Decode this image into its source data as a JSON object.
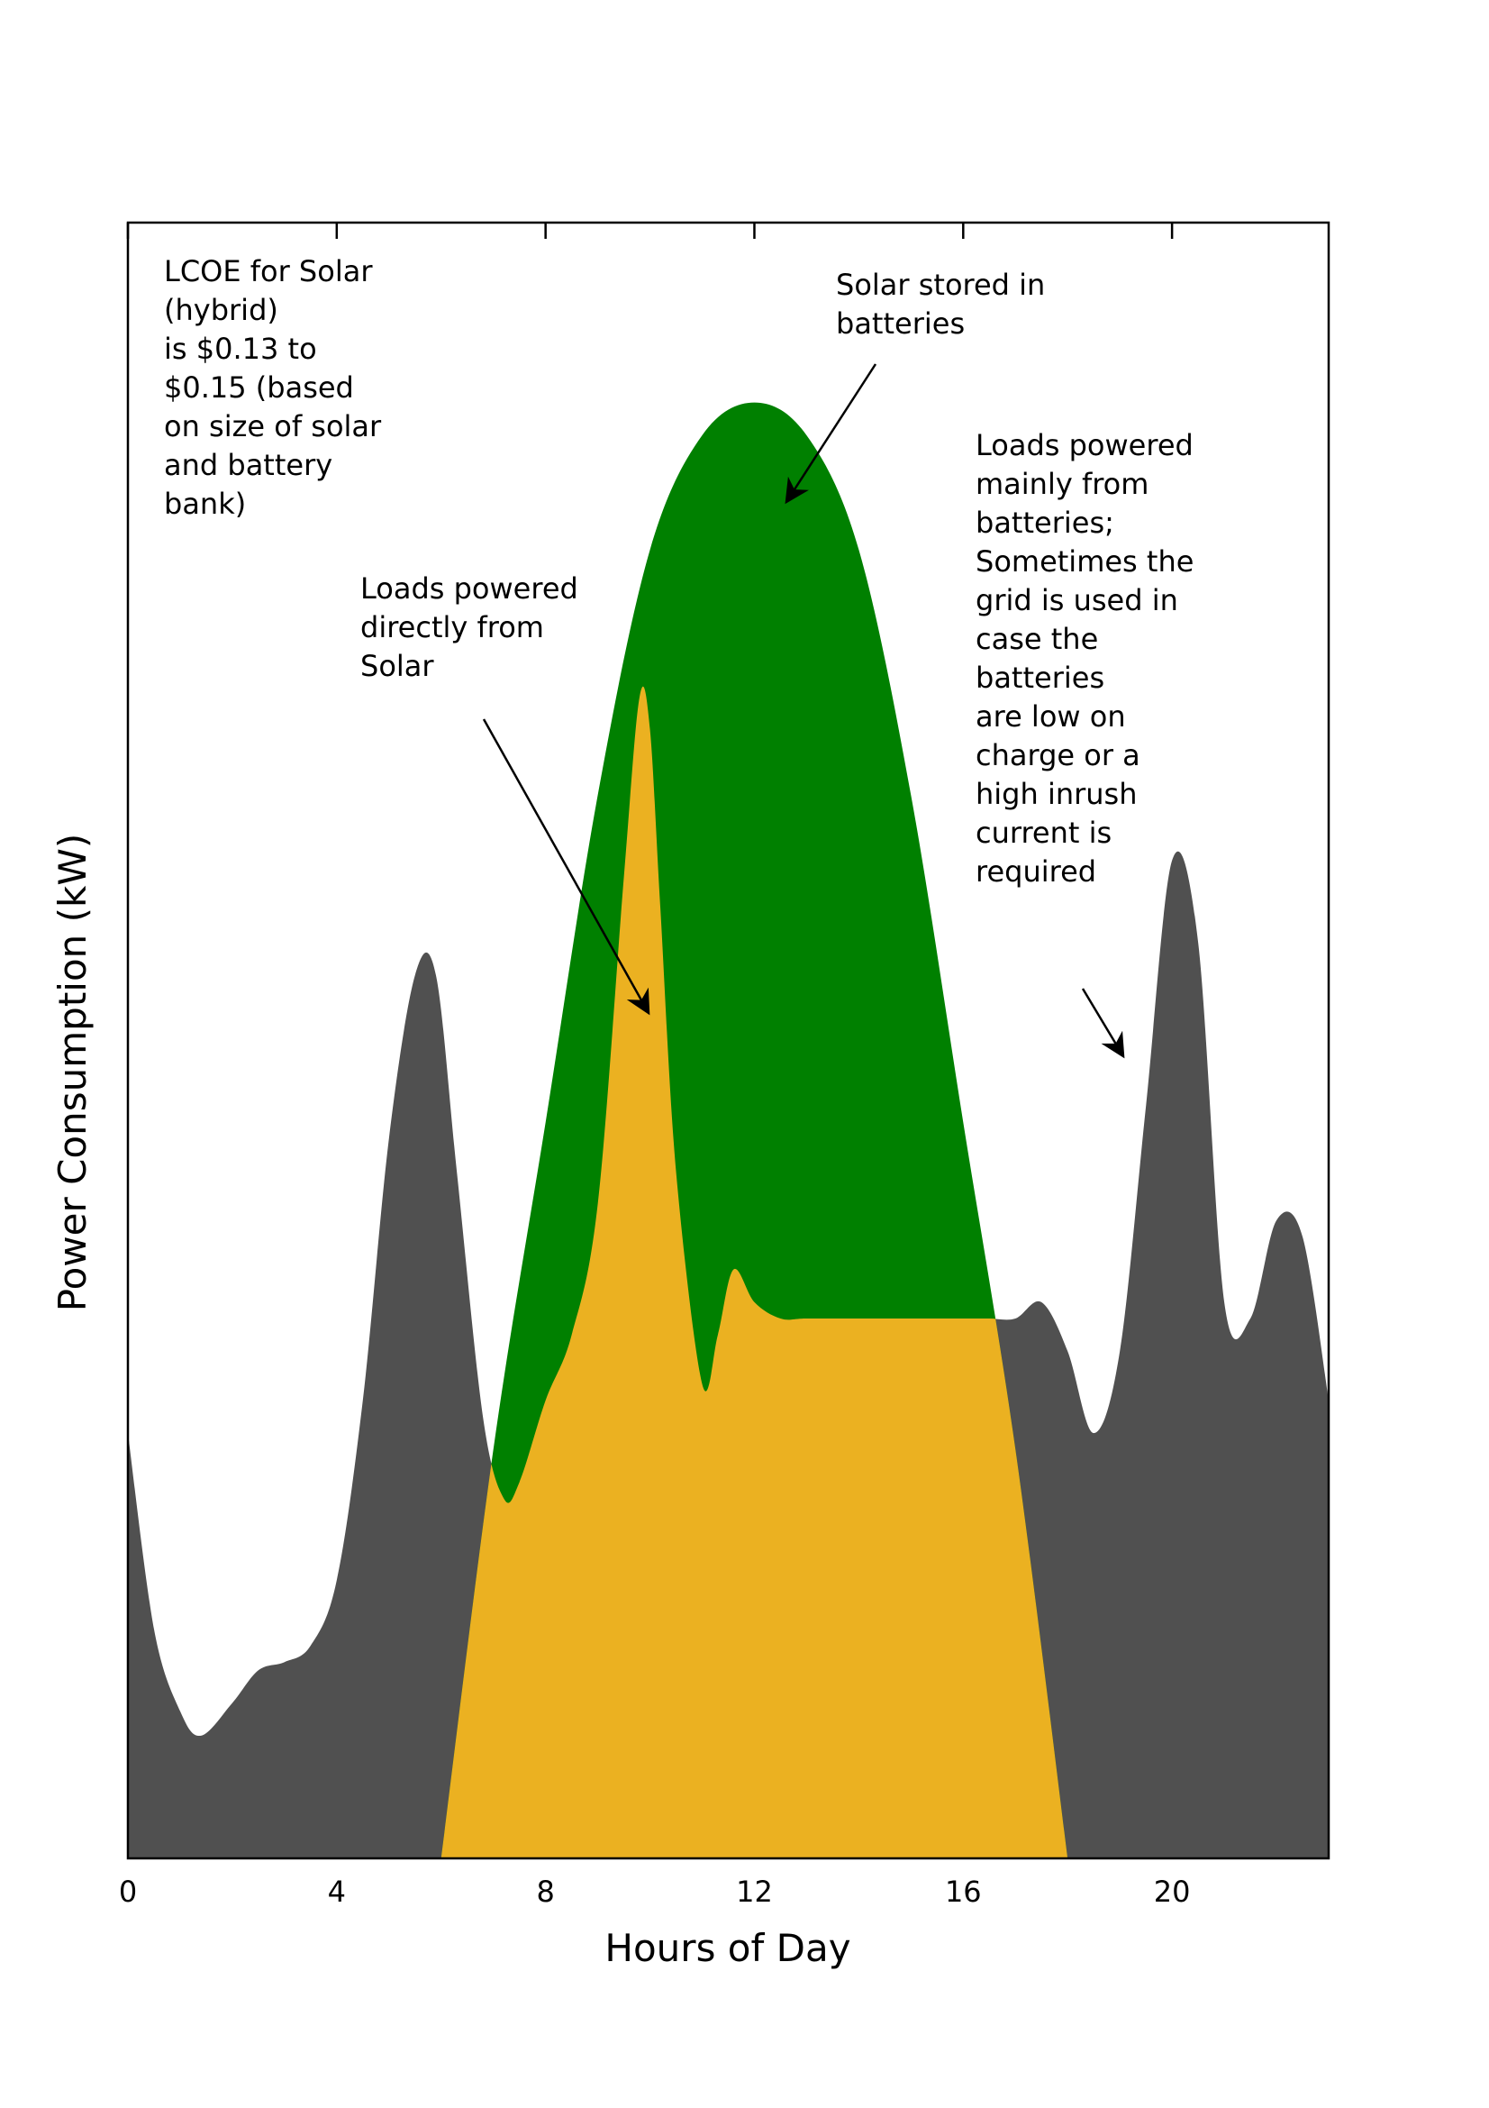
{
  "chart_data": {
    "type": "area",
    "xlabel": "Hours of Day",
    "ylabel": "Power Consumption (kW)",
    "xlim": [
      0,
      23
    ],
    "ylim": [
      0,
      100
    ],
    "x_ticks": [
      0,
      4,
      8,
      12,
      16,
      20
    ],
    "y_ticks": [],
    "grid": false,
    "colors": {
      "load": "#505050",
      "solar_stored": "#008000",
      "solar_direct": "#EBB121"
    },
    "series": [
      {
        "key": "load",
        "x": [
          0,
          0.5,
          1,
          1.4,
          2,
          2.5,
          3,
          3.5,
          4,
          4.5,
          5,
          5.5,
          5.9,
          6.3,
          6.8,
          7.2,
          7.5,
          8,
          8.5,
          9,
          9.5,
          9.8,
          10,
          10.2,
          10.5,
          11,
          11.3,
          11.6,
          12,
          12.5,
          13,
          14,
          15,
          16,
          16.5,
          17,
          17.5,
          18,
          18.5,
          19,
          19.5,
          20,
          20.5,
          21,
          21.5,
          22,
          22.5,
          23
        ],
        "y": [
          26,
          14,
          9,
          7.5,
          9.5,
          11.5,
          12,
          13,
          17,
          28,
          44,
          54,
          54,
          42,
          27,
          22,
          23,
          28,
          32,
          40,
          60,
          71,
          69,
          58,
          42,
          29,
          32,
          36,
          34,
          33,
          33,
          33,
          33,
          33,
          33,
          33,
          34,
          31,
          26,
          31,
          46,
          61,
          56,
          34,
          33,
          39,
          38,
          28
        ]
      },
      {
        "key": "solar_stored",
        "x": [
          6,
          7,
          8,
          9,
          10,
          11,
          12,
          13,
          14,
          15,
          16,
          17,
          18
        ],
        "y": [
          0,
          25,
          45,
          65,
          80,
          87,
          89,
          87,
          80,
          65,
          45,
          25,
          0
        ]
      }
    ],
    "annotations": [
      "LCOE for Solar (hybrid) is $0.13 to $0.15 (based on size of solar and battery bank)",
      "Solar stored in batteries",
      "Loads powered directly from Solar",
      "Loads powered mainly from batteries; Sometimes the grid is used in case the batteries are low on charge or a high inrush current is required"
    ]
  },
  "annotations": {
    "lcoe": [
      "LCOE for Solar",
      "(hybrid)",
      "is $0.13 to",
      "$0.15 (based",
      "on size of solar",
      "and battery",
      "bank)"
    ],
    "stored": [
      "Solar stored in",
      "batteries"
    ],
    "direct": [
      "Loads powered",
      "directly from",
      "Solar"
    ],
    "batteries": [
      "Loads powered",
      "mainly from",
      "batteries;",
      "Sometimes the",
      "grid is used in",
      "case the",
      "batteries",
      "are low on",
      "charge or a",
      "high inrush",
      "current is",
      "required"
    ]
  }
}
